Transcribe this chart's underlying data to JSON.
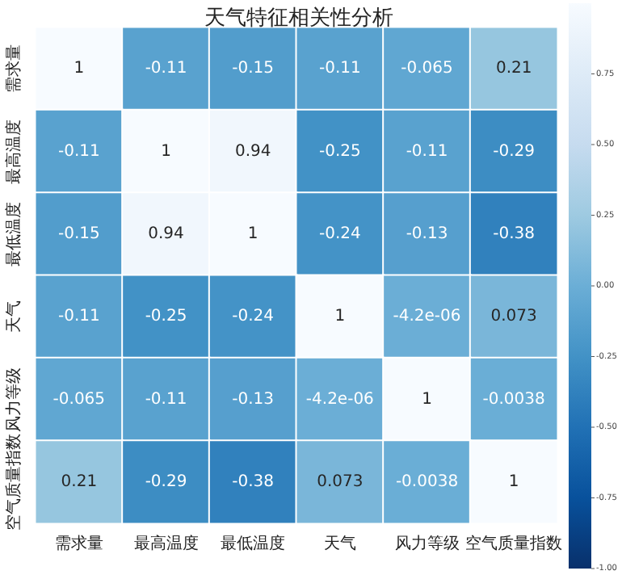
{
  "chart_data": {
    "type": "heatmap",
    "title": "天气特征相关性分析",
    "categories": [
      "需求量",
      "最高温度",
      "最低温度",
      "天气",
      "风力等级",
      "空气质量指数"
    ],
    "y_categories": [
      "需求量",
      "最高温度",
      "最低温度",
      "天气",
      "风力等级",
      "空气质量指数"
    ],
    "cells": [
      [
        1,
        -0.11,
        -0.15,
        -0.11,
        -0.065,
        0.21
      ],
      [
        -0.11,
        1,
        0.94,
        -0.25,
        -0.11,
        -0.29
      ],
      [
        -0.15,
        0.94,
        1,
        -0.24,
        -0.13,
        -0.38
      ],
      [
        -0.11,
        -0.25,
        -0.24,
        1,
        -4.2e-06,
        0.073
      ],
      [
        -0.065,
        -0.11,
        -0.13,
        -4.2e-06,
        1,
        -0.0038
      ],
      [
        0.21,
        -0.29,
        -0.38,
        0.073,
        -0.0038,
        1
      ]
    ],
    "cell_labels": [
      [
        "1",
        "-0.11",
        "-0.15",
        "-0.11",
        "-0.065",
        "0.21"
      ],
      [
        "-0.11",
        "1",
        "0.94",
        "-0.25",
        "-0.11",
        "-0.29"
      ],
      [
        "-0.15",
        "0.94",
        "1",
        "-0.24",
        "-0.13",
        "-0.38"
      ],
      [
        "-0.11",
        "-0.25",
        "-0.24",
        "1",
        "-4.2e-06",
        "0.073"
      ],
      [
        "-0.065",
        "-0.11",
        "-0.13",
        "-4.2e-06",
        "1",
        "-0.0038"
      ],
      [
        "0.21",
        "-0.29",
        "-0.38",
        "0.073",
        "-0.0038",
        "1"
      ]
    ],
    "clim": [
      -1,
      1
    ],
    "cticks": [
      {
        "value": -1,
        "label": "-1.00"
      },
      {
        "value": -0.75,
        "label": "-0.75"
      },
      {
        "value": -0.5,
        "label": "-0.50"
      },
      {
        "value": -0.25,
        "label": "-0.25"
      },
      {
        "value": 0,
        "label": "0.00"
      },
      {
        "value": 0.25,
        "label": "0.25"
      },
      {
        "value": 0.5,
        "label": "0.50"
      },
      {
        "value": 0.75,
        "label": "0.75"
      }
    ]
  }
}
